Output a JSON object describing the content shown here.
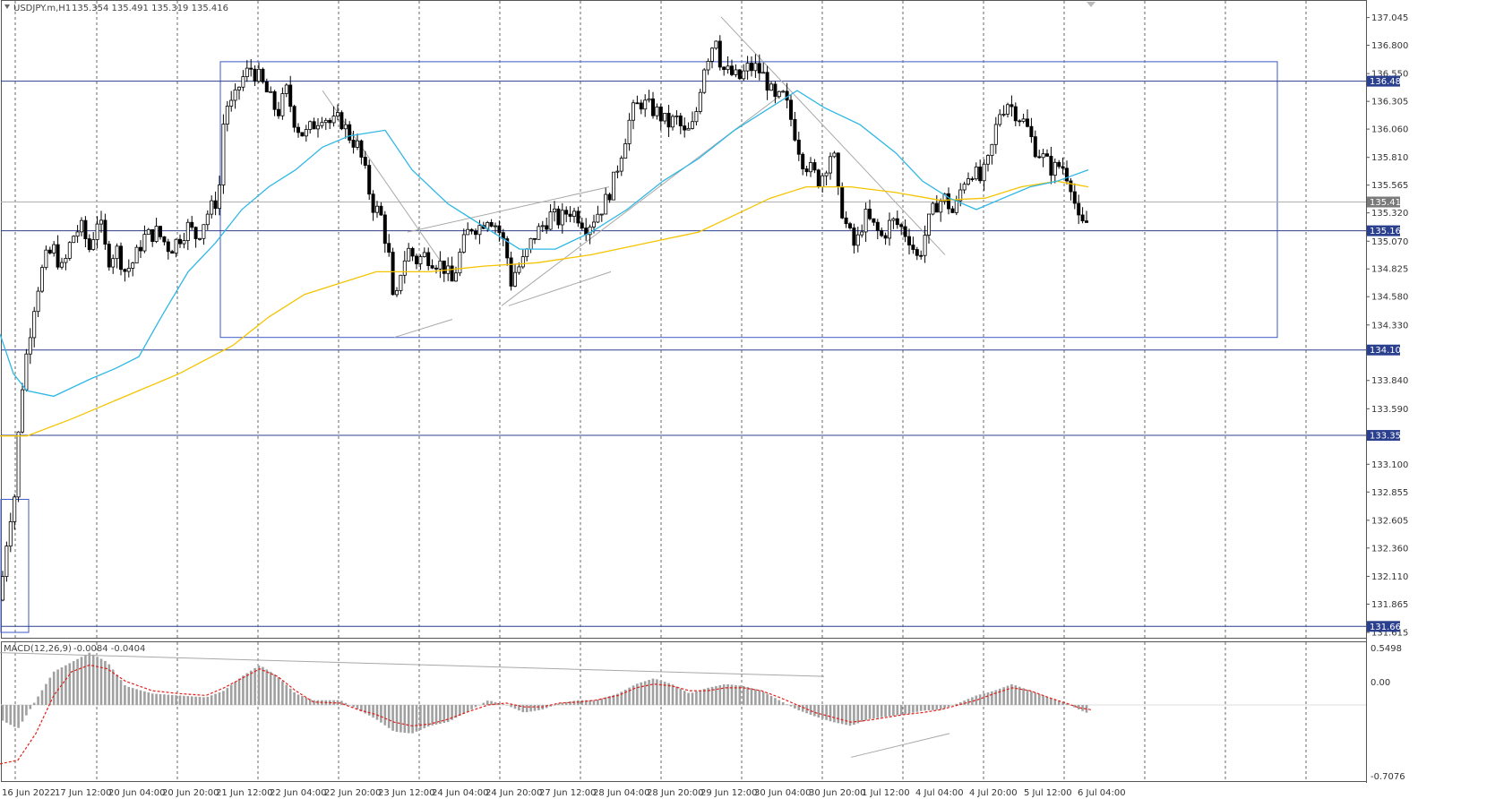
{
  "header": {
    "symbol": "USDJPY.m,H1",
    "ohlc": "135.354 135.491 135.319 135.416"
  },
  "macd_panel": {
    "label": "MACD(12,26,9)",
    "values": "-0.0084 -0.0404",
    "ticks": [
      "0.5498",
      "0.00",
      "-0.7076"
    ]
  },
  "colors": {
    "candle": "#000000",
    "ma_fast": "#2fb7e5",
    "ma_slow": "#f5c400",
    "level_line": "#2b3f8f",
    "range_box": "#3c5ac8",
    "trendline": "#a8a8a8",
    "macd_hist": "#a0a0a0",
    "macd_signal": "#e0201a",
    "grid": "#6a6a6a"
  },
  "chart_data": {
    "type": "candlestick",
    "symbol": "USDJPY.m",
    "timeframe": "H1",
    "ylim": [
      131.615,
      137.2
    ],
    "price_ticks": [
      "137.045",
      "136.800",
      "136.550",
      "136.305",
      "136.060",
      "135.810",
      "135.565",
      "135.320",
      "135.070",
      "134.825",
      "134.580",
      "134.330",
      "133.840",
      "133.590",
      "133.100",
      "132.855",
      "132.605",
      "132.360",
      "132.110",
      "131.865",
      "131.615"
    ],
    "x_ticks": [
      "16 Jun 2022",
      "17 Jun 12:00",
      "20 Jun 04:00",
      "20 Jun 20:00",
      "21 Jun 12:00",
      "22 Jun 04:00",
      "22 Jun 20:00",
      "23 Jun 12:00",
      "24 Jun 04:00",
      "24 Jun 20:00",
      "27 Jun 12:00",
      "28 Jun 04:00",
      "28 Jun 20:00",
      "29 Jun 12:00",
      "30 Jun 04:00",
      "30 Jun 20:00",
      "1 Jul 12:00",
      "4 Jul 04:00",
      "4 Jul 20:00",
      "5 Jul 12:00",
      "6 Jul 04:00"
    ],
    "levels": [
      {
        "price": 136.483,
        "label": "136.483"
      },
      {
        "price": 135.162,
        "label": "135.162"
      },
      {
        "price": 134.109,
        "label": "134.109"
      },
      {
        "price": 133.355,
        "label": "133.355"
      },
      {
        "price": 131.668,
        "label": "131.668"
      }
    ],
    "current_price": {
      "price": 135.416,
      "label": "135.416"
    },
    "close_path": [
      [
        0,
        131.9
      ],
      [
        10,
        132.6
      ],
      [
        16,
        132.8
      ],
      [
        20,
        133.3
      ],
      [
        25,
        133.8
      ],
      [
        30,
        134.1
      ],
      [
        40,
        134.6
      ],
      [
        50,
        134.9
      ],
      [
        60,
        135.0
      ],
      [
        70,
        134.8
      ],
      [
        80,
        135.1
      ],
      [
        90,
        135.2
      ],
      [
        100,
        135.0
      ],
      [
        110,
        135.3
      ],
      [
        120,
        134.9
      ],
      [
        130,
        135.0
      ],
      [
        140,
        134.8
      ],
      [
        150,
        134.9
      ],
      [
        160,
        135.1
      ],
      [
        175,
        135.15
      ],
      [
        190,
        135.0
      ],
      [
        200,
        135.1
      ],
      [
        210,
        135.2
      ],
      [
        220,
        135.1
      ],
      [
        230,
        135.3
      ],
      [
        240,
        135.4
      ],
      [
        246,
        135.6
      ],
      [
        250,
        136.2
      ],
      [
        255,
        136.3
      ],
      [
        260,
        136.25
      ],
      [
        265,
        136.4
      ],
      [
        270,
        136.5
      ],
      [
        280,
        136.6
      ],
      [
        290,
        136.5
      ],
      [
        300,
        136.35
      ],
      [
        310,
        136.2
      ],
      [
        320,
        136.4
      ],
      [
        330,
        136.1
      ],
      [
        340,
        136.0
      ],
      [
        350,
        136.1
      ],
      [
        360,
        136.2
      ],
      [
        370,
        136.1
      ],
      [
        380,
        136.15
      ],
      [
        390,
        136.0
      ],
      [
        400,
        135.9
      ],
      [
        410,
        135.6
      ],
      [
        415,
        135.4
      ],
      [
        425,
        135.3
      ],
      [
        435,
        134.9
      ],
      [
        440,
        134.4
      ],
      [
        447,
        134.8
      ],
      [
        455,
        135.0
      ],
      [
        465,
        134.9
      ],
      [
        475,
        134.95
      ],
      [
        485,
        134.9
      ],
      [
        495,
        134.85
      ],
      [
        505,
        134.7
      ],
      [
        515,
        135.0
      ],
      [
        525,
        135.2
      ],
      [
        535,
        135.2
      ],
      [
        545,
        135.3
      ],
      [
        555,
        135.2
      ],
      [
        565,
        135.0
      ],
      [
        570,
        134.7
      ],
      [
        575,
        134.8
      ],
      [
        585,
        134.9
      ],
      [
        595,
        135.1
      ],
      [
        605,
        135.2
      ],
      [
        615,
        135.3
      ],
      [
        625,
        135.25
      ],
      [
        635,
        135.35
      ],
      [
        645,
        135.3
      ],
      [
        655,
        135.2
      ],
      [
        665,
        135.3
      ],
      [
        675,
        135.4
      ],
      [
        685,
        135.6
      ],
      [
        695,
        135.9
      ],
      [
        705,
        136.2
      ],
      [
        715,
        136.3
      ],
      [
        725,
        136.25
      ],
      [
        735,
        136.2
      ],
      [
        745,
        136.1
      ],
      [
        755,
        136.15
      ],
      [
        765,
        136.0
      ],
      [
        775,
        136.1
      ],
      [
        785,
        136.6
      ],
      [
        795,
        136.8
      ],
      [
        800,
        136.9
      ],
      [
        805,
        136.6
      ],
      [
        815,
        136.55
      ],
      [
        825,
        136.5
      ],
      [
        835,
        136.6
      ],
      [
        845,
        136.6
      ],
      [
        855,
        136.5
      ],
      [
        865,
        136.3
      ],
      [
        875,
        136.35
      ],
      [
        885,
        136.1
      ],
      [
        895,
        135.8
      ],
      [
        905,
        135.7
      ],
      [
        915,
        135.6
      ],
      [
        925,
        135.8
      ],
      [
        930,
        135.9
      ],
      [
        935,
        135.5
      ],
      [
        945,
        135.2
      ],
      [
        955,
        135.0
      ],
      [
        965,
        135.3
      ],
      [
        975,
        135.2
      ],
      [
        985,
        135.1
      ],
      [
        995,
        135.25
      ],
      [
        1005,
        135.2
      ],
      [
        1015,
        135.1
      ],
      [
        1025,
        134.9
      ],
      [
        1035,
        135.2
      ],
      [
        1045,
        135.4
      ],
      [
        1055,
        135.45
      ],
      [
        1065,
        135.3
      ],
      [
        1075,
        135.6
      ],
      [
        1085,
        135.7
      ],
      [
        1095,
        135.6
      ],
      [
        1105,
        135.8
      ],
      [
        1115,
        136.2
      ],
      [
        1125,
        136.3
      ],
      [
        1135,
        136.2
      ],
      [
        1145,
        136.1
      ],
      [
        1155,
        135.9
      ],
      [
        1165,
        135.8
      ],
      [
        1175,
        135.7
      ],
      [
        1185,
        135.75
      ],
      [
        1195,
        135.6
      ],
      [
        1205,
        135.2
      ],
      [
        1212,
        135.2
      ],
      [
        1218,
        135.4
      ]
    ],
    "ma_fast_path": [
      [
        0,
        134.25
      ],
      [
        15,
        133.9
      ],
      [
        30,
        133.75
      ],
      [
        60,
        133.7
      ],
      [
        100,
        133.85
      ],
      [
        130,
        133.95
      ],
      [
        155,
        134.05
      ],
      [
        180,
        134.4
      ],
      [
        210,
        134.8
      ],
      [
        240,
        135.05
      ],
      [
        270,
        135.35
      ],
      [
        300,
        135.55
      ],
      [
        330,
        135.7
      ],
      [
        360,
        135.9
      ],
      [
        390,
        136.0
      ],
      [
        430,
        136.05
      ],
      [
        460,
        135.7
      ],
      [
        500,
        135.4
      ],
      [
        540,
        135.2
      ],
      [
        580,
        135.0
      ],
      [
        620,
        135.0
      ],
      [
        660,
        135.15
      ],
      [
        700,
        135.35
      ],
      [
        740,
        135.6
      ],
      [
        780,
        135.8
      ],
      [
        820,
        136.05
      ],
      [
        860,
        136.25
      ],
      [
        890,
        136.4
      ],
      [
        920,
        136.25
      ],
      [
        960,
        136.1
      ],
      [
        1000,
        135.85
      ],
      [
        1030,
        135.6
      ],
      [
        1060,
        135.45
      ],
      [
        1090,
        135.35
      ],
      [
        1120,
        135.45
      ],
      [
        1150,
        135.55
      ],
      [
        1180,
        135.6
      ],
      [
        1215,
        135.7
      ]
    ],
    "ma_slow_path": [
      [
        0,
        133.35
      ],
      [
        30,
        133.35
      ],
      [
        80,
        133.5
      ],
      [
        140,
        133.7
      ],
      [
        200,
        133.9
      ],
      [
        260,
        134.15
      ],
      [
        300,
        134.4
      ],
      [
        340,
        134.6
      ],
      [
        380,
        134.7
      ],
      [
        420,
        134.8
      ],
      [
        480,
        134.8
      ],
      [
        540,
        134.85
      ],
      [
        600,
        134.88
      ],
      [
        660,
        134.95
      ],
      [
        720,
        135.05
      ],
      [
        780,
        135.15
      ],
      [
        820,
        135.3
      ],
      [
        860,
        135.45
      ],
      [
        900,
        135.55
      ],
      [
        950,
        135.55
      ],
      [
        1000,
        135.5
      ],
      [
        1050,
        135.43
      ],
      [
        1100,
        135.45
      ],
      [
        1140,
        135.55
      ],
      [
        1180,
        135.6
      ],
      [
        1215,
        135.55
      ]
    ],
    "range_box": {
      "x0": 246,
      "x1": 1426,
      "top": 136.655,
      "bottom": 134.22
    },
    "trendlines": [
      [
        [
          440,
          134.22
        ],
        [
          505,
          134.38
        ]
      ],
      [
        [
          455,
          135.15
        ],
        [
          680,
          135.55
        ]
      ],
      [
        [
          568,
          134.5
        ],
        [
          682,
          134.8
        ]
      ],
      [
        [
          560,
          134.5
        ],
        [
          870,
          136.35
        ]
      ],
      [
        [
          360,
          136.4
        ],
        [
          500,
          134.8
        ]
      ],
      [
        [
          805,
          137.05
        ],
        [
          1055,
          134.95
        ]
      ]
    ],
    "macd": {
      "ylim": [
        -0.8,
        0.65
      ],
      "hist_path": [
        [
          0,
          -0.15
        ],
        [
          20,
          -0.25
        ],
        [
          40,
          0.05
        ],
        [
          60,
          0.35
        ],
        [
          80,
          0.45
        ],
        [
          100,
          0.55
        ],
        [
          120,
          0.45
        ],
        [
          140,
          0.2
        ],
        [
          170,
          0.12
        ],
        [
          200,
          0.1
        ],
        [
          230,
          0.08
        ],
        [
          250,
          0.15
        ],
        [
          270,
          0.3
        ],
        [
          290,
          0.42
        ],
        [
          310,
          0.3
        ],
        [
          330,
          0.12
        ],
        [
          350,
          0.05
        ],
        [
          380,
          0.05
        ],
        [
          400,
          -0.05
        ],
        [
          420,
          -0.15
        ],
        [
          440,
          -0.28
        ],
        [
          460,
          -0.3
        ],
        [
          480,
          -0.22
        ],
        [
          500,
          -0.18
        ],
        [
          520,
          -0.08
        ],
        [
          545,
          0.05
        ],
        [
          565,
          0.0
        ],
        [
          585,
          -0.08
        ],
        [
          605,
          -0.05
        ],
        [
          625,
          0.02
        ],
        [
          645,
          0.05
        ],
        [
          665,
          0.05
        ],
        [
          690,
          0.12
        ],
        [
          710,
          0.22
        ],
        [
          730,
          0.28
        ],
        [
          750,
          0.22
        ],
        [
          770,
          0.12
        ],
        [
          790,
          0.18
        ],
        [
          810,
          0.22
        ],
        [
          830,
          0.2
        ],
        [
          850,
          0.15
        ],
        [
          870,
          0.05
        ],
        [
          890,
          -0.05
        ],
        [
          910,
          -0.12
        ],
        [
          930,
          -0.18
        ],
        [
          950,
          -0.22
        ],
        [
          970,
          -0.15
        ],
        [
          990,
          -0.12
        ],
        [
          1010,
          -0.1
        ],
        [
          1030,
          -0.06
        ],
        [
          1050,
          -0.05
        ],
        [
          1070,
          0.02
        ],
        [
          1090,
          0.1
        ],
        [
          1110,
          0.15
        ],
        [
          1130,
          0.22
        ],
        [
          1150,
          0.15
        ],
        [
          1170,
          0.08
        ],
        [
          1190,
          0.02
        ],
        [
          1205,
          -0.05
        ],
        [
          1218,
          -0.1
        ]
      ],
      "signal_path": [
        [
          0,
          -0.62
        ],
        [
          20,
          -0.58
        ],
        [
          40,
          -0.3
        ],
        [
          60,
          0.1
        ],
        [
          80,
          0.35
        ],
        [
          100,
          0.42
        ],
        [
          120,
          0.38
        ],
        [
          140,
          0.25
        ],
        [
          170,
          0.15
        ],
        [
          200,
          0.12
        ],
        [
          230,
          0.1
        ],
        [
          250,
          0.18
        ],
        [
          270,
          0.28
        ],
        [
          290,
          0.38
        ],
        [
          310,
          0.3
        ],
        [
          330,
          0.15
        ],
        [
          350,
          0.03
        ],
        [
          380,
          0.02
        ],
        [
          400,
          -0.05
        ],
        [
          420,
          -0.1
        ],
        [
          440,
          -0.18
        ],
        [
          460,
          -0.22
        ],
        [
          480,
          -0.2
        ],
        [
          500,
          -0.15
        ],
        [
          520,
          -0.08
        ],
        [
          545,
          0.0
        ],
        [
          565,
          0.02
        ],
        [
          585,
          -0.02
        ],
        [
          605,
          -0.02
        ],
        [
          625,
          0.02
        ],
        [
          645,
          0.03
        ],
        [
          665,
          0.05
        ],
        [
          690,
          0.1
        ],
        [
          710,
          0.18
        ],
        [
          730,
          0.22
        ],
        [
          750,
          0.2
        ],
        [
          770,
          0.15
        ],
        [
          790,
          0.15
        ],
        [
          810,
          0.18
        ],
        [
          830,
          0.18
        ],
        [
          850,
          0.15
        ],
        [
          870,
          0.08
        ],
        [
          890,
          0.0
        ],
        [
          910,
          -0.08
        ],
        [
          930,
          -0.13
        ],
        [
          950,
          -0.18
        ],
        [
          970,
          -0.16
        ],
        [
          990,
          -0.13
        ],
        [
          1010,
          -0.1
        ],
        [
          1030,
          -0.08
        ],
        [
          1050,
          -0.05
        ],
        [
          1070,
          0.0
        ],
        [
          1090,
          0.05
        ],
        [
          1110,
          0.12
        ],
        [
          1130,
          0.18
        ],
        [
          1150,
          0.15
        ],
        [
          1170,
          0.08
        ],
        [
          1190,
          0.02
        ],
        [
          1205,
          -0.03
        ],
        [
          1218,
          -0.05
        ]
      ],
      "trendlines": [
        [
          [
            0,
            0.55
          ],
          [
            920,
            0.3
          ]
        ],
        [
          [
            950,
            -0.55
          ],
          [
            1060,
            -0.3
          ]
        ]
      ]
    }
  }
}
